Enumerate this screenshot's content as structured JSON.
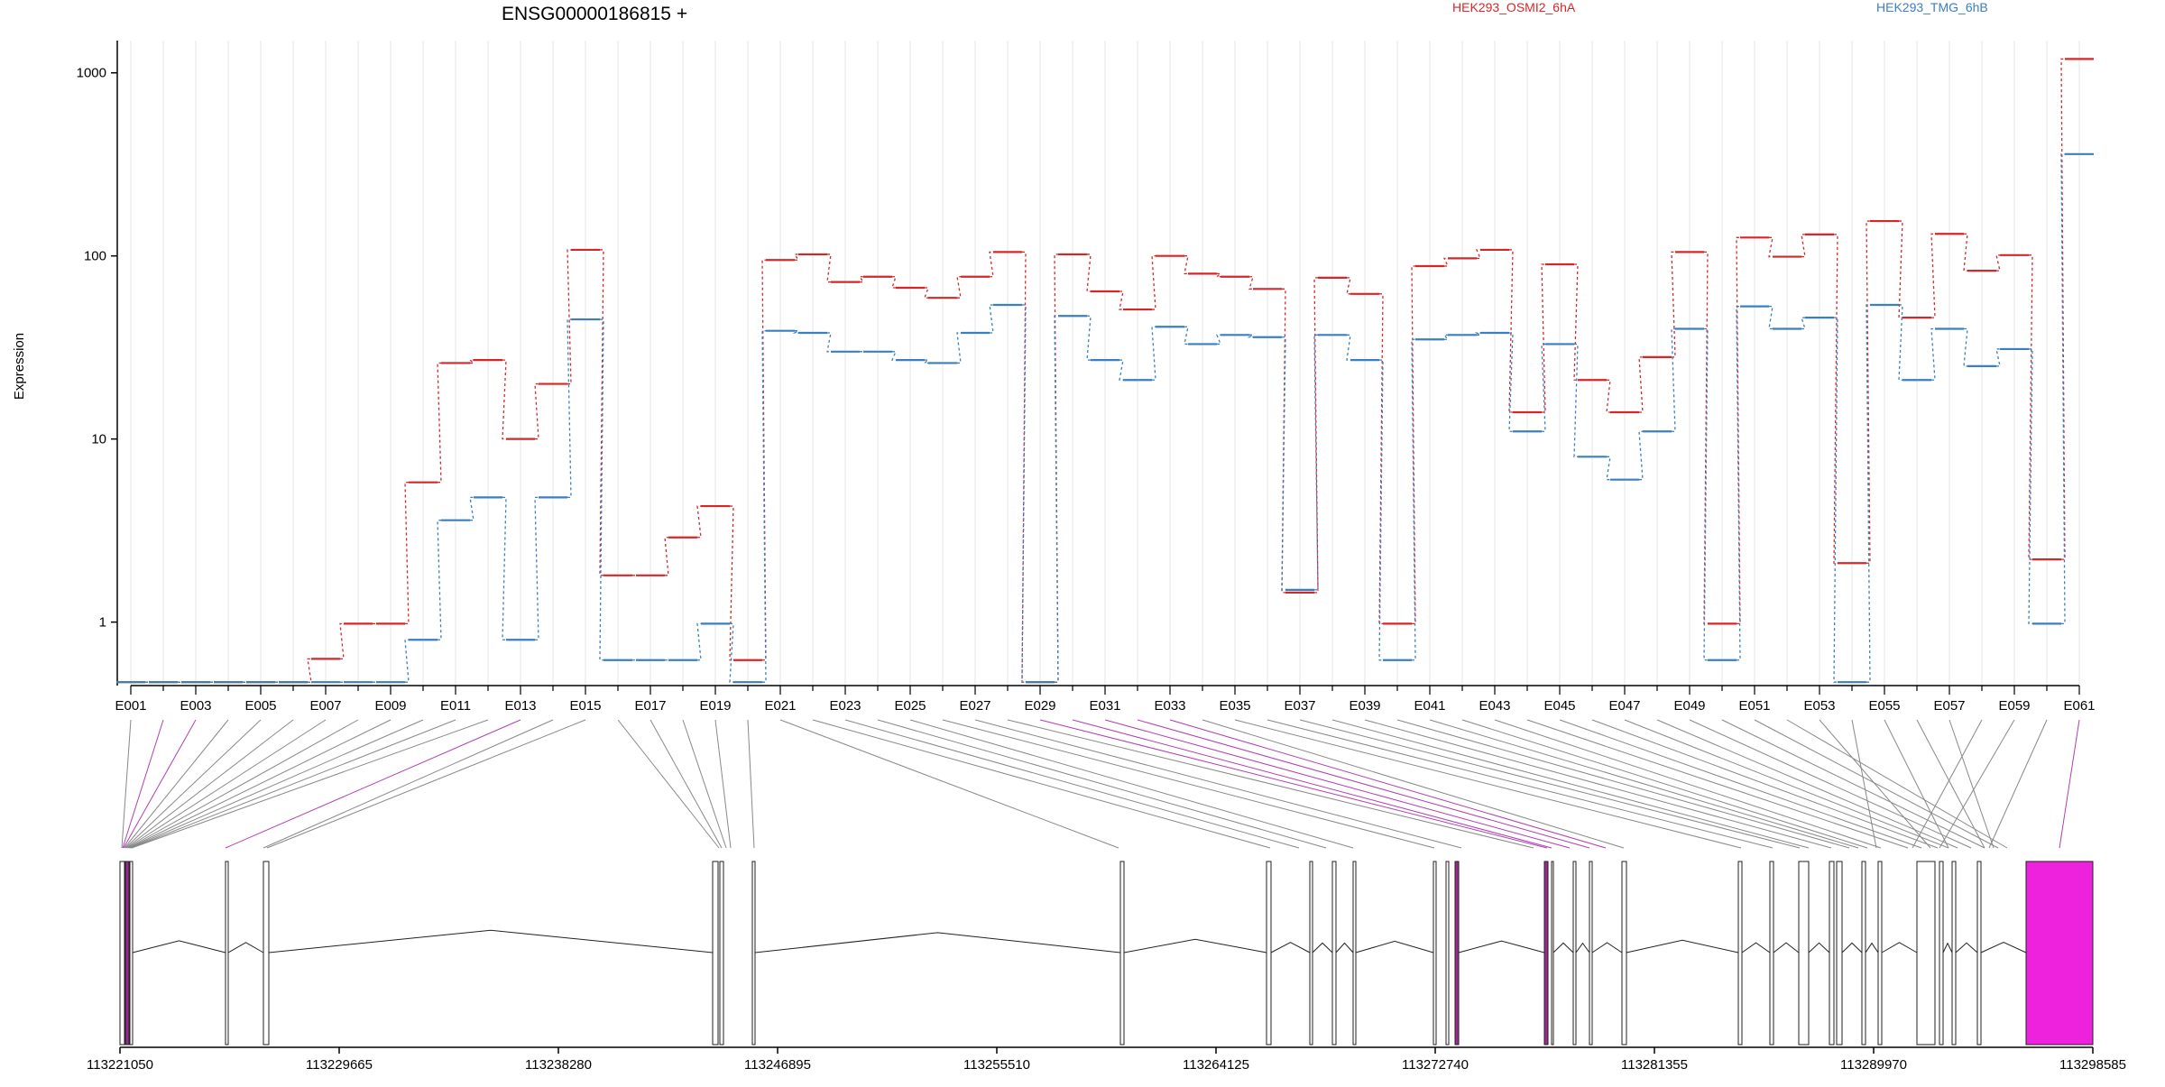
{
  "chart_data": {
    "type": "line",
    "title": "ENSG00000186815 +",
    "ylabel": "Expression",
    "yscale": "log",
    "yticks": [
      1,
      10,
      100,
      1000
    ],
    "ytick_labels": [
      "1",
      "10",
      "100",
      "1000"
    ],
    "ylim": [
      0.45,
      1500
    ],
    "grid": "vertical",
    "legend_placement": "top",
    "x": [
      "E001",
      "E002",
      "E003",
      "E004",
      "E005",
      "E006",
      "E007",
      "E008",
      "E009",
      "E010",
      "E011",
      "E012",
      "E013",
      "E014",
      "E015",
      "E016",
      "E017",
      "E018",
      "E019",
      "E020",
      "E021",
      "E022",
      "E023",
      "E024",
      "E025",
      "E026",
      "E027",
      "E028",
      "E029",
      "E030",
      "E031",
      "E032",
      "E033",
      "E034",
      "E035",
      "E036",
      "E037",
      "E038",
      "E039",
      "E040",
      "E041",
      "E042",
      "E043",
      "E044",
      "E045",
      "E046",
      "E047",
      "E048",
      "E049",
      "E050",
      "E051",
      "E052",
      "E053",
      "E054",
      "E055",
      "E056",
      "E057",
      "E058",
      "E059",
      "E060",
      "E061"
    ],
    "x_tick_labels": [
      "E001",
      "E003",
      "E005",
      "E007",
      "E009",
      "E011",
      "E013",
      "E015",
      "E017",
      "E019",
      "E021",
      "E023",
      "E025",
      "E027",
      "E029",
      "E031",
      "E033",
      "E035",
      "E037",
      "E039",
      "E041",
      "E043",
      "E045",
      "E047",
      "E049",
      "E051",
      "E053",
      "E055",
      "E057",
      "E059",
      "E061"
    ],
    "series": [
      {
        "name": "HEK293_OSMI2_6hA",
        "color": "#d62728",
        "values": [
          0.47,
          0.47,
          0.47,
          0.47,
          0.47,
          0.47,
          0.63,
          0.98,
          0.98,
          5.8,
          26,
          27,
          10,
          20,
          108,
          1.8,
          1.8,
          2.9,
          4.3,
          0.62,
          95,
          102,
          72,
          77,
          67,
          59,
          77,
          105,
          0.47,
          102,
          64,
          51,
          100,
          80,
          77,
          66,
          1.45,
          76,
          62,
          0.98,
          88,
          97,
          108,
          14,
          90,
          21,
          14,
          28,
          105,
          0.98,
          126,
          99,
          131,
          2.1,
          155,
          46,
          132,
          83,
          101,
          2.2,
          1190
        ]
      },
      {
        "name": "HEK293_TMG_6hB",
        "color": "#3a7fc1",
        "values": [
          0.47,
          0.47,
          0.47,
          0.47,
          0.47,
          0.47,
          0.47,
          0.47,
          0.47,
          0.8,
          3.6,
          4.8,
          0.8,
          4.8,
          45,
          0.62,
          0.62,
          0.62,
          0.98,
          0.47,
          39,
          38,
          30,
          30,
          27,
          26,
          38,
          54,
          0.47,
          47,
          27,
          21,
          41,
          33,
          37,
          36,
          1.5,
          37,
          27,
          0.62,
          35,
          37,
          38,
          11,
          33,
          8,
          6,
          11,
          40,
          0.62,
          53,
          40,
          46,
          0.47,
          54,
          21,
          40,
          25,
          31,
          0.98,
          360
        ]
      }
    ],
    "gene_axis": {
      "ticks": [
        "113221050",
        "113229665",
        "113238280",
        "113246895",
        "113255510",
        "113264125",
        "113272740",
        "113281355",
        "113289970",
        "113298585"
      ]
    }
  }
}
